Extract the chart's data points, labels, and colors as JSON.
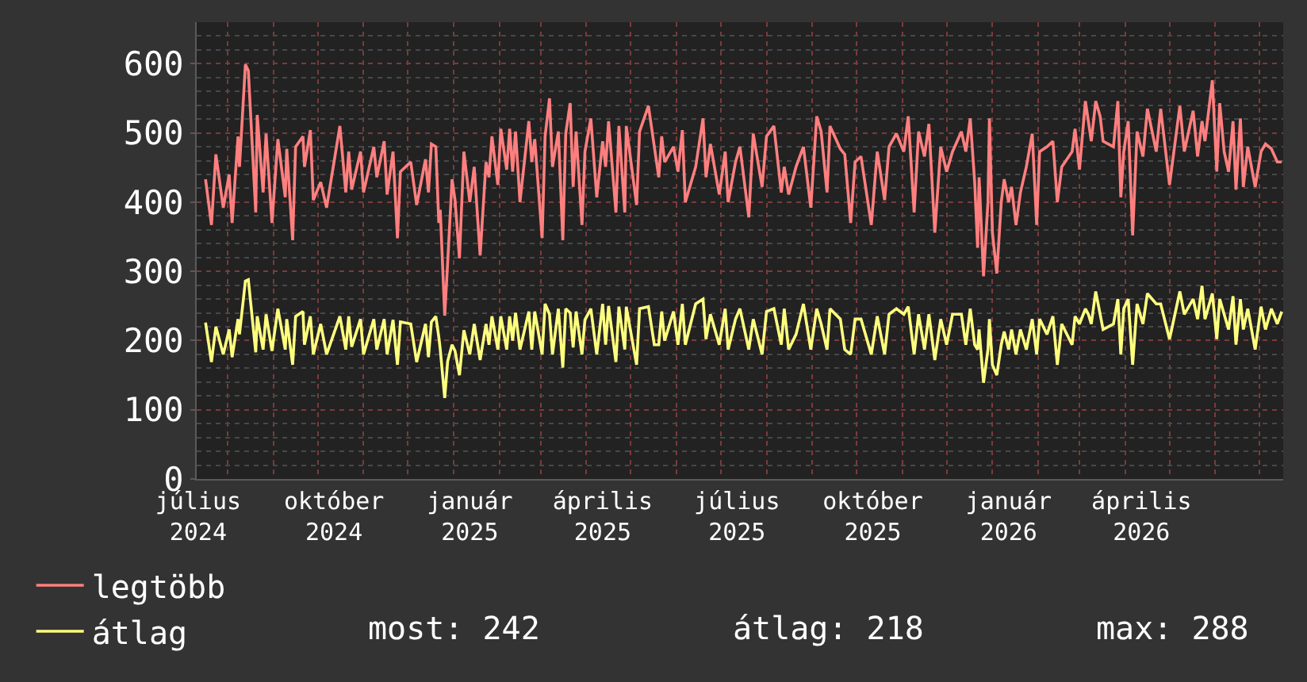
{
  "chart_data": {
    "type": "line",
    "xlim": [
      "2024-07-11",
      "2026-07-17"
    ],
    "xticks": [
      {
        "value": "2024-07-12",
        "label": "július 2024"
      },
      {
        "value": "2024-10-12",
        "label": "október 2024"
      },
      {
        "value": "2025-01-12",
        "label": "január 2025"
      },
      {
        "value": "2025-04-12",
        "label": "április 2025"
      },
      {
        "value": "2025-07-12",
        "label": "július 2025"
      },
      {
        "value": "2025-10-12",
        "label": "október 2025"
      },
      {
        "value": "2026-01-12",
        "label": "január 2026"
      },
      {
        "value": "2026-04-12",
        "label": "április 2026"
      }
    ],
    "ylim": [
      0,
      660
    ],
    "yticks": [
      0,
      100,
      200,
      300,
      400,
      500,
      600
    ],
    "grid": true,
    "legend": "bottom left",
    "annotations": [
      "most: 242",
      "átlag: 218",
      "max: 288"
    ],
    "x": [
      "2024-07-17",
      "2024-07-21",
      "2024-07-24",
      "2024-07-29",
      "2024-08-02",
      "2024-08-04",
      "2024-08-08",
      "2024-08-09",
      "2024-08-13",
      "2024-08-15",
      "2024-08-20",
      "2024-08-21",
      "2024-08-25",
      "2024-08-27",
      "2024-08-31",
      "2024-09-04",
      "2024-09-09",
      "2024-09-10",
      "2024-09-14",
      "2024-09-16",
      "2024-09-21",
      "2024-09-22",
      "2024-09-26",
      "2024-09-28",
      "2024-10-03",
      "2024-10-07",
      "2024-10-16",
      "2024-10-20",
      "2024-10-22",
      "2024-10-24",
      "2024-10-30",
      "2024-11-01",
      "2024-11-08",
      "2024-11-10",
      "2024-11-15",
      "2024-11-17",
      "2024-11-21",
      "2024-11-24",
      "2024-11-26",
      "2024-12-03",
      "2024-12-07",
      "2024-12-13",
      "2024-12-15",
      "2024-12-17",
      "2024-12-20",
      "2024-12-22",
      "2024-12-23",
      "2024-12-26",
      "2024-12-28",
      "2024-12-31",
      "2025-01-02",
      "2025-01-05",
      "2025-01-08",
      "2025-01-12",
      "2025-01-15",
      "2025-01-19",
      "2025-01-23",
      "2025-01-25",
      "2025-01-27",
      "2025-01-31",
      "2025-02-02",
      "2025-02-06",
      "2025-02-08",
      "2025-02-10",
      "2025-02-12",
      "2025-02-15",
      "2025-02-21",
      "2025-02-23",
      "2025-02-25",
      "2025-03-02",
      "2025-03-04",
      "2025-03-07",
      "2025-03-09",
      "2025-03-13",
      "2025-03-16",
      "2025-03-18",
      "2025-03-21",
      "2025-03-23",
      "2025-03-25",
      "2025-03-29",
      "2025-03-31",
      "2025-04-04",
      "2025-04-08",
      "2025-04-12",
      "2025-04-14",
      "2025-04-16",
      "2025-04-21",
      "2025-04-23",
      "2025-04-27",
      "2025-04-28",
      "2025-05-05",
      "2025-05-07",
      "2025-05-13",
      "2025-05-17",
      "2025-05-20",
      "2025-05-22",
      "2025-05-24",
      "2025-05-30",
      "2025-06-02",
      "2025-06-05",
      "2025-06-07",
      "2025-06-14",
      "2025-06-19",
      "2025-06-21",
      "2025-06-24",
      "2025-06-30",
      "2025-07-04",
      "2025-07-06",
      "2025-07-11",
      "2025-07-14",
      "2025-07-20",
      "2025-07-23",
      "2025-07-29",
      "2025-08-01",
      "2025-08-06",
      "2025-08-11",
      "2025-08-13",
      "2025-08-16",
      "2025-08-21",
      "2025-08-26",
      "2025-08-31",
      "2025-09-04",
      "2025-09-07",
      "2025-09-11",
      "2025-09-13",
      "2025-09-20",
      "2025-09-23",
      "2025-09-27",
      "2025-09-30",
      "2025-10-04",
      "2025-10-11",
      "2025-10-15",
      "2025-10-20",
      "2025-10-23",
      "2025-10-28",
      "2025-11-02",
      "2025-11-05",
      "2025-11-09",
      "2025-11-12",
      "2025-11-16",
      "2025-11-19",
      "2025-11-23",
      "2025-11-27",
      "2025-12-01",
      "2025-12-05",
      "2025-12-11",
      "2025-12-14",
      "2025-12-17",
      "2025-12-20",
      "2025-12-22",
      "2025-12-23",
      "2025-12-26",
      "2025-12-29",
      "2025-12-30",
      "2026-01-01",
      "2026-01-04",
      "2026-01-07",
      "2026-01-09",
      "2026-01-12",
      "2026-01-14",
      "2026-01-17",
      "2026-01-20",
      "2026-01-24",
      "2026-01-28",
      "2026-01-31",
      "2026-02-02",
      "2026-02-07",
      "2026-02-11",
      "2026-02-14",
      "2026-02-17",
      "2026-02-24",
      "2026-02-26",
      "2026-03-01",
      "2026-03-05",
      "2026-03-07",
      "2026-03-09",
      "2026-03-12",
      "2026-03-15",
      "2026-03-17",
      "2026-03-24",
      "2026-03-27",
      "2026-03-29",
      "2026-03-31",
      "2026-04-03",
      "2026-04-06",
      "2026-04-09",
      "2026-04-13",
      "2026-04-16",
      "2026-04-22",
      "2026-04-25",
      "2026-05-01",
      "2026-05-08",
      "2026-05-11",
      "2026-05-17",
      "2026-05-20",
      "2026-05-23",
      "2026-05-25",
      "2026-05-30",
      "2026-06-02",
      "2026-06-04",
      "2026-06-07",
      "2026-06-10",
      "2026-06-13",
      "2026-06-15",
      "2026-06-18",
      "2026-06-20",
      "2026-06-23",
      "2026-06-28",
      "2026-07-02",
      "2026-07-05",
      "2026-07-09",
      "2026-07-13",
      "2026-07-16"
    ],
    "series": [
      {
        "name": "legtöbb",
        "color": "#ff7f7f",
        "values": [
          433,
          367,
          469,
          392,
          440,
          370,
          495,
          451,
          599,
          590,
          385,
          526,
          414,
          499,
          370,
          491,
          407,
          477,
          345,
          480,
          495,
          451,
          504,
          403,
          429,
          392,
          510,
          414,
          473,
          418,
          473,
          414,
          480,
          436,
          488,
          411,
          473,
          348,
          444,
          458,
          396,
          462,
          414,
          484,
          480,
          370,
          389,
          236,
          312,
          433,
          403,
          319,
          473,
          400,
          451,
          323,
          458,
          436,
          495,
          425,
          506,
          447,
          506,
          444,
          502,
          400,
          517,
          458,
          491,
          348,
          495,
          550,
          451,
          502,
          345,
          499,
          543,
          422,
          502,
          367,
          473,
          521,
          407,
          488,
          451,
          517,
          385,
          510,
          385,
          510,
          396,
          502,
          539,
          480,
          436,
          495,
          458,
          480,
          444,
          504,
          400,
          451,
          521,
          436,
          484,
          411,
          473,
          400,
          458,
          480,
          378,
          499,
          422,
          495,
          510,
          414,
          451,
          411,
          451,
          480,
          392,
          524,
          502,
          414,
          510,
          477,
          469,
          370,
          458,
          466,
          367,
          473,
          403,
          480,
          499,
          473,
          524,
          385,
          502,
          466,
          513,
          356,
          480,
          444,
          473,
          502,
          473,
          521,
          429,
          334,
          436,
          293,
          400,
          521,
          356,
          297,
          400,
          433,
          400,
          422,
          367,
          414,
          451,
          499,
          367,
          473,
          480,
          488,
          400,
          451,
          473,
          506,
          447,
          546,
          517,
          488,
          546,
          524,
          488,
          480,
          546,
          407,
          473,
          517,
          352,
          502,
          466,
          535,
          473,
          535,
          425,
          539,
          473,
          532,
          466,
          517,
          488,
          576,
          444,
          543,
          473,
          444,
          517,
          418,
          521,
          422,
          480,
          422,
          473,
          484,
          477,
          458,
          458
        ]
      },
      {
        "name": "átlag",
        "color": "#ffff7f",
        "values": [
          226,
          169,
          220,
          180,
          216,
          176,
          231,
          209,
          286,
          288,
          183,
          235,
          187,
          238,
          185,
          246,
          187,
          231,
          165,
          235,
          242,
          194,
          235,
          180,
          224,
          180,
          235,
          187,
          235,
          191,
          231,
          180,
          231,
          187,
          231,
          180,
          230,
          165,
          227,
          224,
          169,
          224,
          176,
          227,
          235,
          205,
          187,
          117,
          170,
          194,
          185,
          150,
          215,
          180,
          224,
          172,
          224,
          194,
          235,
          187,
          235,
          187,
          235,
          200,
          240,
          187,
          242,
          187,
          242,
          180,
          253,
          238,
          180,
          246,
          161,
          246,
          240,
          190,
          242,
          180,
          230,
          246,
          180,
          253,
          194,
          250,
          169,
          249,
          187,
          249,
          165,
          246,
          249,
          194,
          194,
          242,
          200,
          242,
          194,
          253,
          194,
          253,
          260,
          202,
          238,
          194,
          246,
          187,
          231,
          246,
          187,
          231,
          180,
          242,
          246,
          194,
          246,
          187,
          209,
          253,
          187,
          246,
          224,
          187,
          246,
          231,
          187,
          180,
          231,
          231,
          180,
          235,
          180,
          238,
          246,
          238,
          249,
          180,
          238,
          187,
          238,
          172,
          231,
          194,
          238,
          238,
          194,
          246,
          194,
          187,
          216,
          139,
          187,
          231,
          165,
          150,
          194,
          213,
          187,
          216,
          180,
          216,
          187,
          231,
          180,
          231,
          209,
          235,
          165,
          224,
          194,
          235,
          224,
          246,
          238,
          224,
          271,
          238,
          216,
          224,
          260,
          180,
          246,
          260,
          165,
          253,
          224,
          268,
          253,
          253,
          202,
          271,
          238,
          260,
          231,
          279,
          231,
          268,
          202,
          260,
          238,
          216,
          264,
          194,
          260,
          216,
          246,
          187,
          249,
          216,
          246,
          224,
          242
        ]
      }
    ]
  }
}
